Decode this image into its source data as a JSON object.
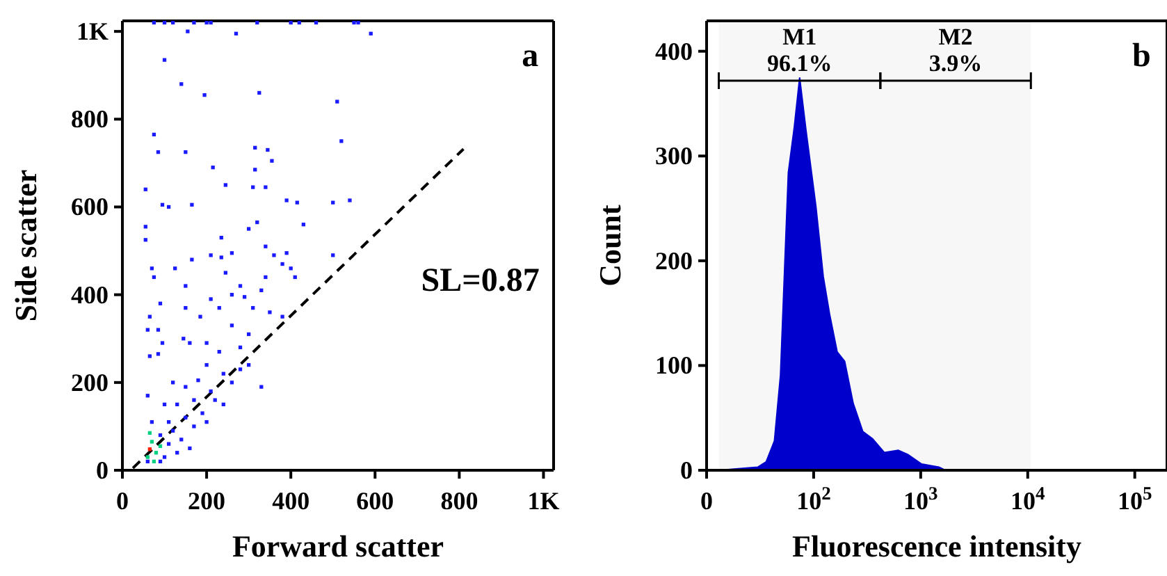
{
  "chart_data": [
    {
      "type": "scatter",
      "xlabel": "Forward scatter",
      "ylabel": "Side scatter",
      "xlim": [
        0,
        1024
      ],
      "ylim": [
        0,
        1024
      ],
      "xticks": [
        0,
        200,
        400,
        600,
        800,
        {
          "value": 1000,
          "label": "1K"
        }
      ],
      "yticks": [
        0,
        200,
        400,
        600,
        800,
        {
          "value": 1000,
          "label": "1K"
        }
      ],
      "annotations": [
        "a",
        "SL=0.87"
      ],
      "series": [
        {
          "color": "#1a1aff",
          "marker": "square",
          "x": [
            75,
            100,
            120,
            170,
            200,
            210,
            320,
            400,
            420,
            460,
            550,
            560,
            270,
            155,
            590,
            100,
            140,
            195,
            325,
            510,
            520,
            75,
            85,
            150,
            315,
            345,
            355,
            215,
            315,
            245,
            310,
            340,
            390,
            165,
            415,
            55,
            95,
            110,
            500,
            540,
            430,
            320,
            300,
            55,
            55,
            235,
            260,
            165,
            210,
            235,
            340,
            360,
            390,
            380,
            400,
            500,
            70,
            125,
            75,
            150,
            340,
            410,
            245,
            280,
            330,
            260,
            290,
            210,
            90,
            65,
            150,
            185,
            230,
            310,
            350,
            380,
            60,
            85,
            95,
            145,
            160,
            200,
            260,
            300,
            230,
            280,
            65,
            85,
            300,
            200,
            240,
            180,
            150,
            120,
            210,
            260,
            330,
            280,
            170,
            220,
            130,
            100,
            60,
            190,
            240,
            150,
            110,
            70,
            120,
            170,
            90,
            140,
            200,
            110,
            130,
            100,
            160,
            60,
            90
          ],
          "values": [
            1020,
            1020,
            1020,
            1020,
            1020,
            1020,
            1020,
            1020,
            1020,
            1020,
            1020,
            1020,
            995,
            1000,
            995,
            935,
            880,
            855,
            860,
            840,
            750,
            765,
            725,
            725,
            735,
            730,
            705,
            690,
            685,
            650,
            645,
            645,
            615,
            605,
            610,
            640,
            605,
            600,
            610,
            615,
            560,
            565,
            550,
            555,
            525,
            530,
            495,
            480,
            490,
            485,
            510,
            490,
            495,
            470,
            460,
            490,
            460,
            460,
            440,
            420,
            440,
            440,
            450,
            420,
            410,
            400,
            395,
            390,
            380,
            350,
            370,
            350,
            370,
            370,
            360,
            350,
            320,
            320,
            290,
            300,
            290,
            290,
            330,
            310,
            270,
            280,
            260,
            265,
            240,
            240,
            220,
            205,
            190,
            200,
            180,
            200,
            190,
            230,
            160,
            160,
            150,
            150,
            170,
            130,
            150,
            120,
            110,
            110,
            90,
            100,
            80,
            70,
            110,
            60,
            40,
            30,
            50,
            20,
            20
          ]
        },
        {
          "color": "#00d080",
          "marker": "square",
          "x": [
            70,
            80,
            60,
            75,
            90,
            65
          ],
          "values": [
            65,
            40,
            30,
            20,
            55,
            85
          ]
        },
        {
          "color": "#ff2000",
          "marker": "square",
          "x": [
            65
          ],
          "values": [
            48
          ]
        },
        {
          "type": "line",
          "color": "#000000",
          "line_style": "dashed",
          "x": [
            25,
            810
          ],
          "values": [
            5,
            732
          ]
        }
      ]
    },
    {
      "type": "area",
      "xlabel": "Fluorescence intensity",
      "ylabel": "Count",
      "color": "#0000cc",
      "log": "x",
      "xlim": [
        0,
        200000
      ],
      "ylim": [
        0,
        429
      ],
      "xticks": [
        0,
        {
          "value": 100,
          "label": "10$^{2}$"
        },
        {
          "value": 1000,
          "label": "10$^{3}$"
        },
        {
          "value": 10000,
          "label": "10$^{4}$"
        },
        {
          "value": 100000,
          "label": "10$^{5}$"
        }
      ],
      "yticks": [
        0,
        100,
        200,
        300,
        400
      ],
      "annotations": [
        "b"
      ],
      "bands": [
        {
          "axis": "x",
          "from": 13,
          "to": 420,
          "label": "M1 96.1%"
        },
        {
          "axis": "x",
          "from": 420,
          "to": 10700,
          "label": "M2 3.9%"
        }
      ],
      "x": [
        13,
        30,
        36,
        43,
        49,
        58,
        66,
        74,
        85,
        105,
        123,
        141,
        166,
        195,
        234,
        288,
        355,
        457,
        617,
        759,
        1020,
        1480,
        1700,
        190000
      ],
      "values": [
        0,
        3,
        8,
        28,
        91,
        284,
        328,
        375,
        324,
        252,
        185,
        149,
        113,
        104,
        64,
        37,
        30,
        17,
        19,
        15,
        6,
        3,
        0,
        0
      ]
    }
  ]
}
